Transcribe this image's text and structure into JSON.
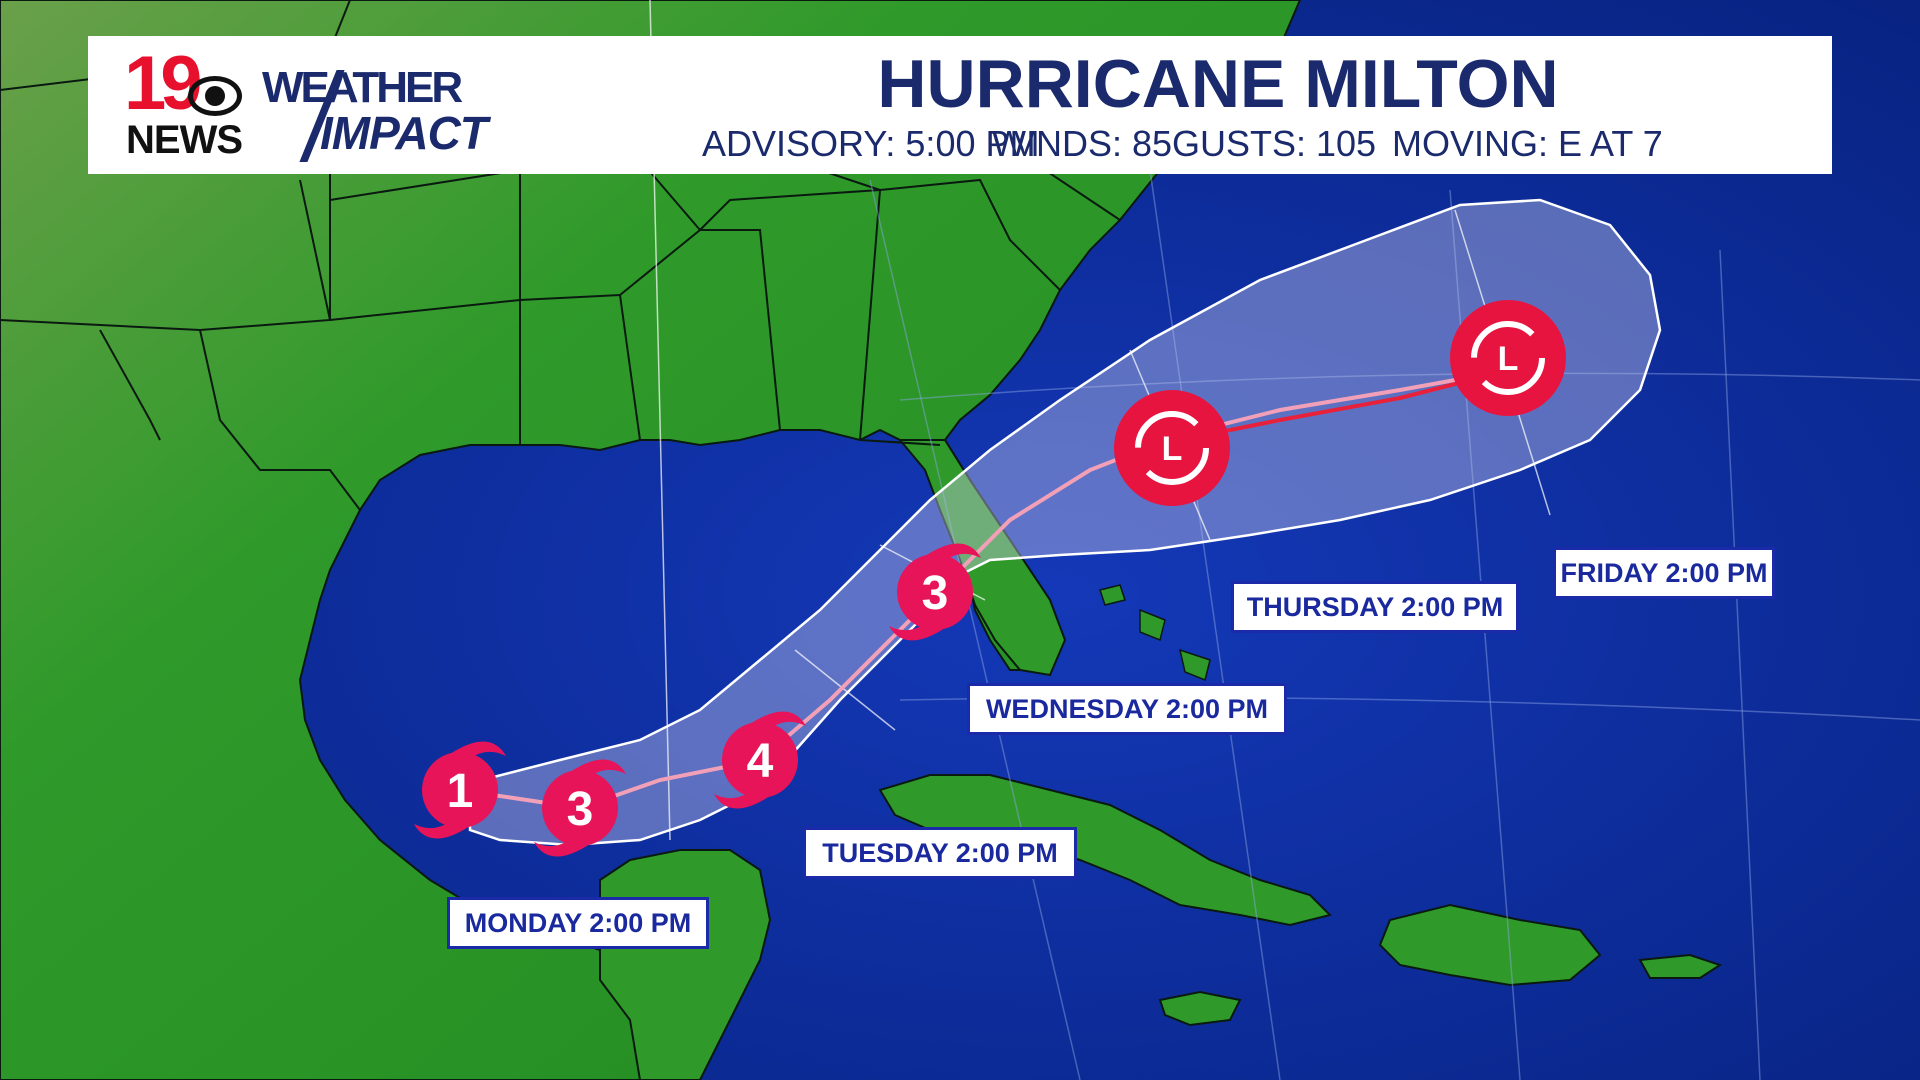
{
  "header": {
    "logo": {
      "number": "19",
      "news": "NEWS",
      "weather": "WEATHER",
      "impact": "IMPACT"
    },
    "title": "HURRICANE MILTON",
    "advisory": "ADVISORY: 5:00 PM",
    "winds": "WINDS: 85",
    "gusts": "GUSTS: 105",
    "moving": "MOVING: E AT 7"
  },
  "forecast_points": [
    {
      "label": "1",
      "type": "hurricane",
      "category": 1
    },
    {
      "label": "3",
      "type": "hurricane",
      "category": 3
    },
    {
      "label": "4",
      "type": "hurricane",
      "category": 4
    },
    {
      "label": "3",
      "type": "hurricane",
      "category": 3
    },
    {
      "label": "L",
      "type": "post-tropical-low"
    },
    {
      "label": "L",
      "type": "post-tropical-low"
    }
  ],
  "time_labels": {
    "monday": "MONDAY 2:00 PM",
    "tuesday": "TUESDAY 2:00 PM",
    "wednesday": "WEDNESDAY 2:00 PM",
    "thursday": "THURSDAY 2:00 PM",
    "friday": "FRIDAY 2:00 PM"
  },
  "colors": {
    "ocean": "#0b2a9a",
    "land": "#2f9a2a",
    "hurricane_marker": "#e8145a",
    "low_marker": "#e81440",
    "header_text": "#1a2a6c",
    "label_text": "#1a2a9e",
    "cone_fill": "#c8c8e8"
  }
}
